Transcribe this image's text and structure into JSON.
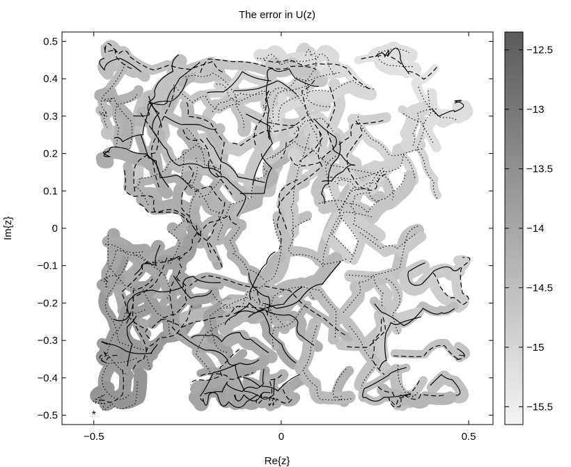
{
  "chart_data": {
    "type": "heatmap",
    "title": "The error in U(z)",
    "xlabel": "Re{z}",
    "ylabel": "Im{z}",
    "xlim": [
      -0.585,
      0.565
    ],
    "ylim": [
      -0.525,
      0.525
    ],
    "xticks": [
      -0.5,
      0,
      0.5
    ],
    "xtick_labels": [
      "−0.5",
      "0",
      "0.5"
    ],
    "yticks": [
      0.5,
      0.4,
      0.3,
      0.2,
      0.1,
      0,
      -0.1,
      -0.2,
      -0.3,
      -0.4,
      -0.5
    ],
    "ytick_labels": [
      "0.5",
      "0.4",
      "0.3",
      "0.2",
      "0.1",
      "0",
      "−0.1",
      "−0.2",
      "−0.3",
      "−0.4",
      "−0.5"
    ],
    "colorbar": {
      "range": [
        -15.65,
        -12.35
      ],
      "ticks": [
        -12.5,
        -13,
        -13.5,
        -14,
        -14.5,
        -15,
        -15.5
      ],
      "tick_labels": [
        "−12.5",
        "−13",
        "−13.5",
        "−14",
        "−14.5",
        "−15",
        "−15.5"
      ],
      "colors": [
        "#f4f4f4",
        "#5a5a5a"
      ]
    },
    "grid": false,
    "marker": {
      "x": -0.5,
      "y": -0.49,
      "symbol": "*"
    },
    "domain_region": {
      "x": [
        -0.47,
        0.48
      ],
      "y": [
        -0.46,
        0.47
      ]
    }
  }
}
